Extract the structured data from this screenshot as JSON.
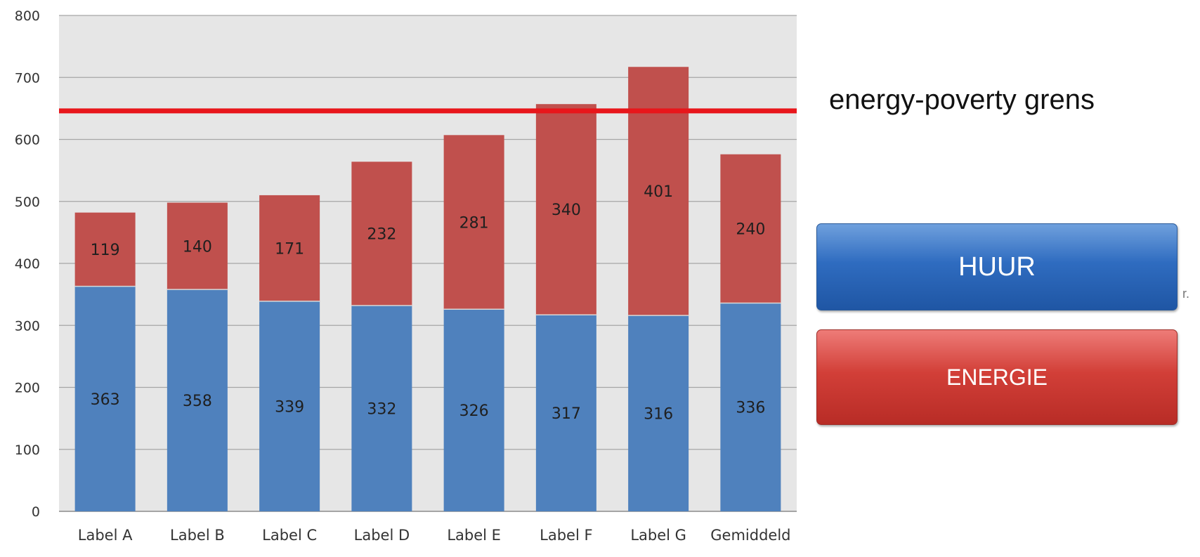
{
  "chart_data": {
    "type": "bar",
    "stacked": true,
    "categories": [
      "Label A",
      "Label B",
      "Label C",
      "Label D",
      "Label E",
      "Label F",
      "Label G",
      "Gemiddeld"
    ],
    "series": [
      {
        "name": "HUUR",
        "color": "#4f81bd",
        "values": [
          363,
          358,
          339,
          332,
          326,
          317,
          316,
          336
        ]
      },
      {
        "name": "ENERGIE",
        "color": "#c0504d",
        "values": [
          119,
          140,
          171,
          232,
          281,
          340,
          401,
          240
        ]
      }
    ],
    "ylim": [
      0,
      800
    ],
    "yticks": [
      0,
      100,
      200,
      300,
      400,
      500,
      600,
      700,
      800
    ],
    "grid": true,
    "threshold": {
      "value": 646,
      "color": "#e8161b",
      "label": "energy-poverty grens"
    },
    "legend": {
      "placement": "right",
      "items": [
        {
          "label": "HUUR",
          "color": "#2f6cc0"
        },
        {
          "label": "ENERGIE",
          "color": "#d23f38"
        }
      ]
    }
  },
  "stray_text": "r."
}
